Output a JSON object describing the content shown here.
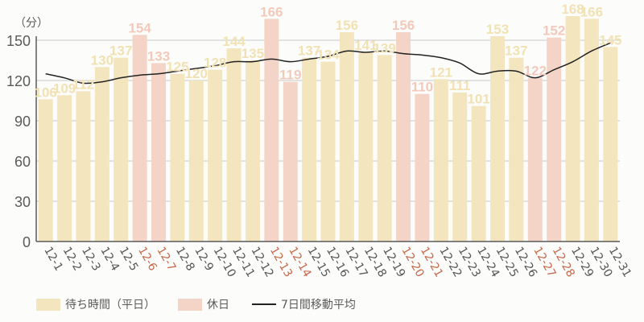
{
  "colors": {
    "weekday": "#f3e5bd",
    "holiday": "#f4d4c6",
    "weekday_label": "#f1e1b3",
    "holiday_label": "#f2c9bb",
    "holiday_xlabel": "#c8674a",
    "weekday_xlabel": "#555555",
    "line": "#222222",
    "grid": "#c8c8c8",
    "axis": "#5a5a5a"
  },
  "legend": {
    "weekday": "待ち時間（平日）",
    "holiday": "休日",
    "line": "7日間移動平均"
  },
  "chart_data": {
    "type": "bar",
    "title": "",
    "unit_label": "（分）",
    "xlabel": "",
    "ylabel": "分",
    "ylim": [
      0,
      165
    ],
    "yticks": [
      0,
      30,
      60,
      90,
      120,
      150
    ],
    "grid": true,
    "legend_position": "bottom",
    "categories": [
      "12-1",
      "12-2",
      "12-3",
      "12-4",
      "12-5",
      "12-6",
      "12-7",
      "12-8",
      "12-9",
      "12-10",
      "12-11",
      "12-12",
      "12-13",
      "12-14",
      "12-15",
      "12-16",
      "12-17",
      "12-18",
      "12-19",
      "12-20",
      "12-21",
      "12-22",
      "12-23",
      "12-24",
      "12-25",
      "12-26",
      "12-27",
      "12-28",
      "12-29",
      "12-30",
      "12-31"
    ],
    "holidays": [
      false,
      false,
      false,
      false,
      false,
      true,
      true,
      false,
      false,
      false,
      false,
      false,
      true,
      true,
      false,
      false,
      false,
      false,
      false,
      true,
      true,
      false,
      false,
      false,
      false,
      false,
      true,
      true,
      false,
      false,
      false
    ],
    "series": [
      {
        "name": "待ち時間",
        "type": "bar",
        "values": [
          106,
          109,
          112,
          130,
          137,
          154,
          133,
          125,
          120,
          128,
          144,
          135,
          166,
          119,
          137,
          134,
          156,
          141,
          139,
          156,
          110,
          121,
          111,
          101,
          153,
          137,
          122,
          152,
          168,
          166,
          145
        ]
      },
      {
        "name": "7日間移動平均",
        "type": "line",
        "values": [
          125,
          122,
          118,
          119,
          122,
          124,
          125,
          127,
          129,
          131,
          134,
          134,
          136,
          134,
          136,
          138,
          142,
          141,
          142,
          140,
          139,
          137,
          133,
          125,
          127,
          127,
          122,
          128,
          134,
          142,
          148
        ]
      }
    ]
  }
}
